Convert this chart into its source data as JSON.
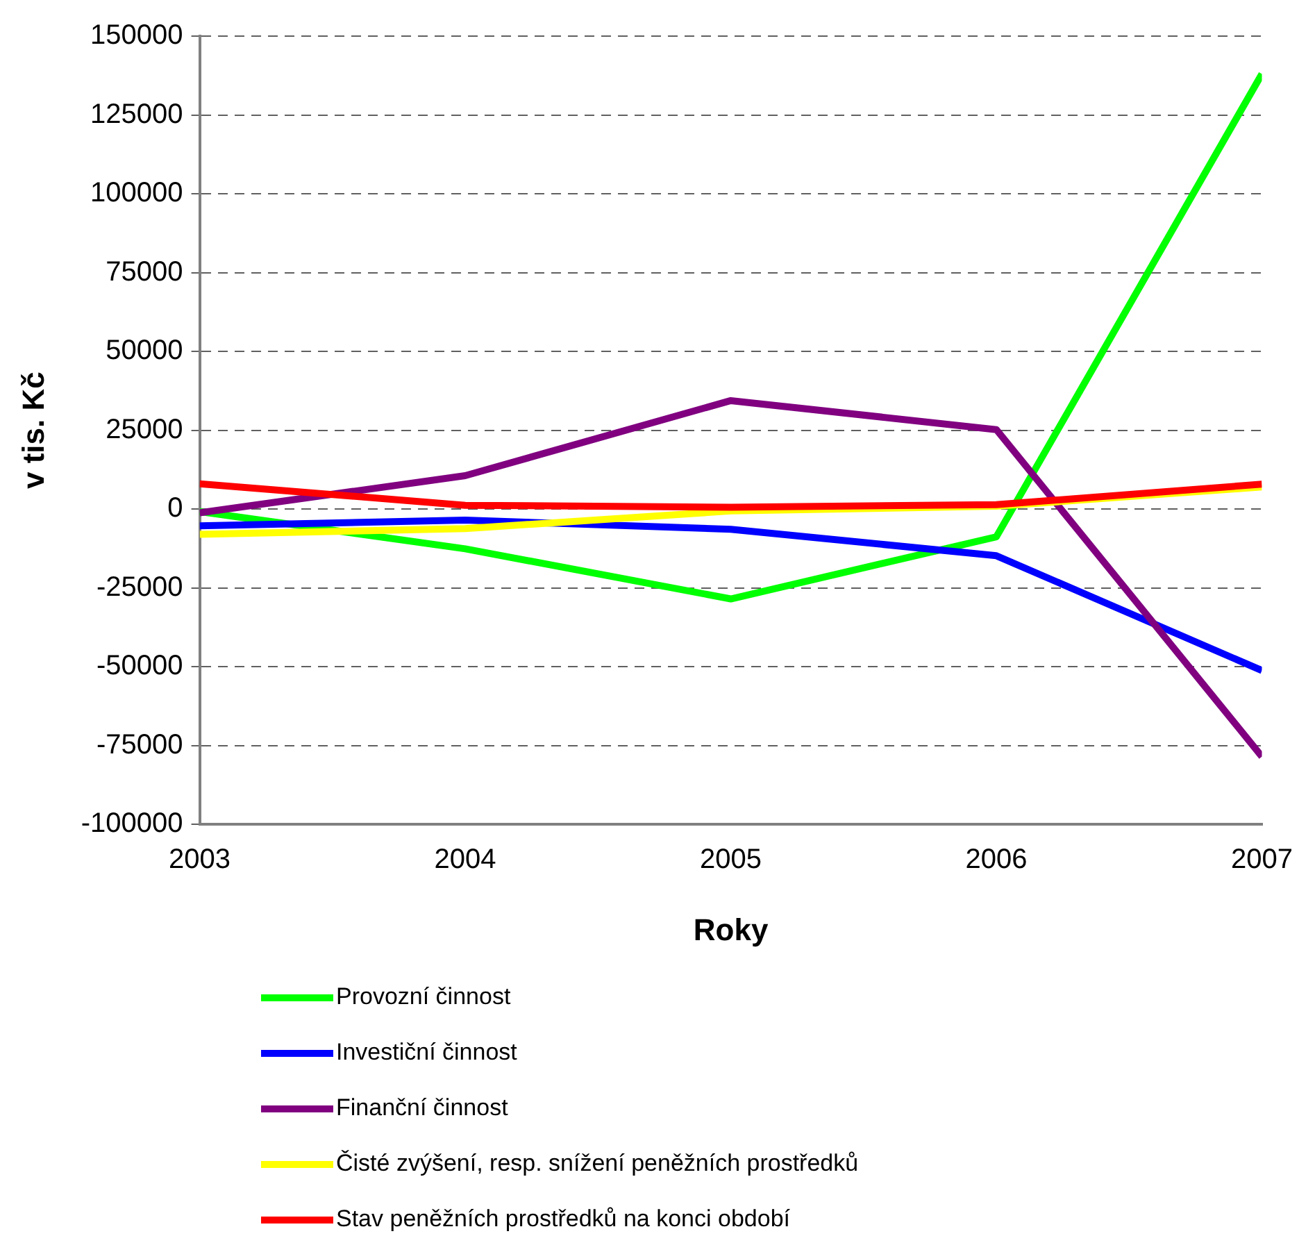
{
  "chart_data": {
    "type": "line",
    "xlabel": "Roky",
    "ylabel": "v tis. Kč",
    "x": [
      2003,
      2004,
      2005,
      2006,
      2007
    ],
    "xlim": [
      2003,
      2007
    ],
    "xticks": [
      2003,
      2004,
      2005,
      2006,
      2007
    ],
    "ylim": [
      -100000,
      150000
    ],
    "yticks": [
      -100000,
      -75000,
      -50000,
      -25000,
      0,
      25000,
      50000,
      75000,
      100000,
      125000,
      150000
    ],
    "grid": "y",
    "legend": "bottom",
    "marker": "none",
    "line_style": "solid",
    "series": [
      {
        "name": "Provozní činnost",
        "color": "#00ff00",
        "values": [
          -800,
          -12600,
          -28500,
          -8800,
          138000
        ]
      },
      {
        "name": "Investiční činnost",
        "color": "#0000ff",
        "values": [
          -5300,
          -3500,
          -6400,
          -14800,
          -51200
        ]
      },
      {
        "name": "Finanční činnost",
        "color": "#800080",
        "values": [
          -1200,
          10600,
          34400,
          25200,
          -78500
        ]
      },
      {
        "name": "Čisté zvýšení, resp. snížení peněžních prostředků",
        "color": "#ffff00",
        "values": [
          -8000,
          -6200,
          -600,
          900,
          7000
        ]
      },
      {
        "name": "Stav peněžních prostředků na konci období",
        "color": "#ff0000",
        "values": [
          8000,
          1200,
          600,
          1400,
          7900
        ]
      }
    ]
  }
}
